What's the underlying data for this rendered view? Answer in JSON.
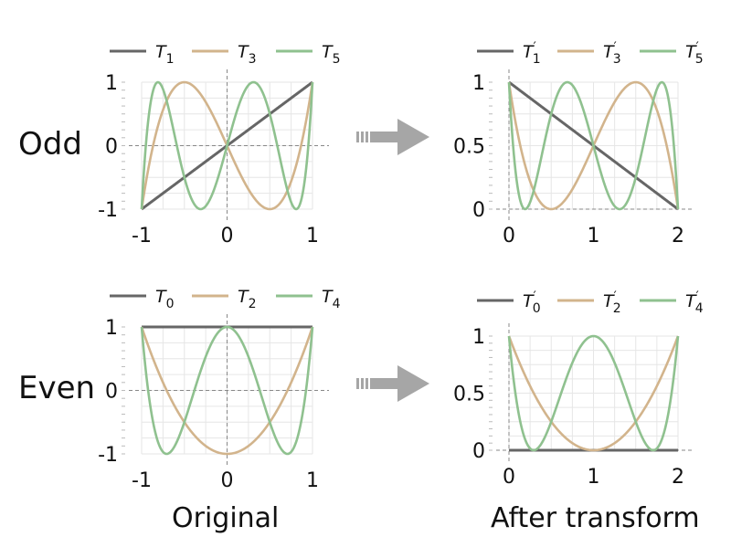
{
  "row_labels": {
    "odd": "Odd",
    "even": "Even"
  },
  "captions": {
    "left": "Original",
    "right": "After transform"
  },
  "colors": {
    "gray": "#666666",
    "tan": "#d2b48c",
    "green": "#8fc18f",
    "arrow": "#a6a6a6"
  },
  "chart_data": [
    {
      "type": "line",
      "panel": "odd-original",
      "xlim": [
        -1,
        1
      ],
      "ylim": [
        -1,
        1
      ],
      "xticks": [
        "-1",
        "0",
        "1"
      ],
      "yticks": [
        "-1",
        "0",
        "1"
      ],
      "grid": true,
      "legend": "top",
      "series": [
        {
          "name": "T1",
          "degree": 1,
          "color_key": "gray"
        },
        {
          "name": "T3",
          "degree": 3,
          "color_key": "tan"
        },
        {
          "name": "T5",
          "degree": 5,
          "color_key": "green"
        }
      ]
    },
    {
      "type": "line",
      "panel": "odd-transformed",
      "xlim": [
        0,
        2
      ],
      "ylim": [
        0,
        1
      ],
      "xticks": [
        "0",
        "1",
        "2"
      ],
      "yticks": [
        "0",
        "0.5",
        "1"
      ],
      "grid": true,
      "legend": "top",
      "series": [
        {
          "name": "T'1",
          "degree": 1,
          "color_key": "gray"
        },
        {
          "name": "T'3",
          "degree": 3,
          "color_key": "tan"
        },
        {
          "name": "T'5",
          "degree": 5,
          "color_key": "green"
        }
      ]
    },
    {
      "type": "line",
      "panel": "even-original",
      "xlim": [
        -1,
        1
      ],
      "ylim": [
        -1,
        1
      ],
      "xticks": [
        "-1",
        "0",
        "1"
      ],
      "yticks": [
        "-1",
        "0",
        "1"
      ],
      "grid": true,
      "legend": "top",
      "series": [
        {
          "name": "T0",
          "degree": 0,
          "color_key": "gray"
        },
        {
          "name": "T2",
          "degree": 2,
          "color_key": "tan"
        },
        {
          "name": "T4",
          "degree": 4,
          "color_key": "green"
        }
      ]
    },
    {
      "type": "line",
      "panel": "even-transformed",
      "xlim": [
        0,
        2
      ],
      "ylim": [
        0,
        1
      ],
      "xticks": [
        "0",
        "1",
        "2"
      ],
      "yticks": [
        "0",
        "0.5",
        "1"
      ],
      "grid": true,
      "legend": "top",
      "series": [
        {
          "name": "T'0",
          "degree": 0,
          "color_key": "gray"
        },
        {
          "name": "T'2",
          "degree": 2,
          "color_key": "tan"
        },
        {
          "name": "T'4",
          "degree": 4,
          "color_key": "green"
        }
      ]
    }
  ]
}
